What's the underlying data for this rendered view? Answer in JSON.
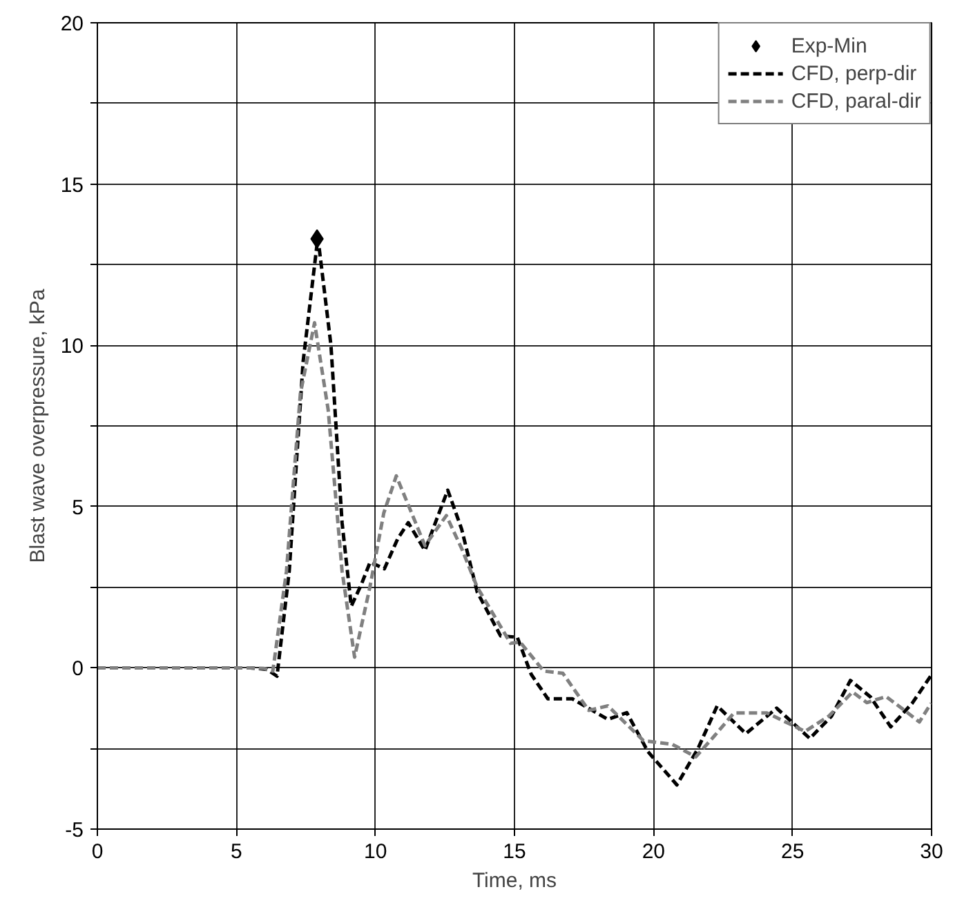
{
  "chart_data": {
    "type": "line",
    "xlabel": "Time, ms",
    "ylabel": "Blast wave overpressure, kPa",
    "xlim": [
      0,
      30
    ],
    "ylim": [
      -5,
      20
    ],
    "xticks": [
      0,
      5,
      10,
      15,
      20,
      25,
      30
    ],
    "yticks": [
      -5,
      {
        "value": -2.5,
        "label": null
      },
      0,
      {
        "value": 2.5,
        "label": null
      },
      5,
      {
        "value": 7.5,
        "label": null
      },
      10,
      {
        "value": 12.5,
        "label": null
      },
      15,
      {
        "value": 17.5,
        "label": null
      },
      20
    ],
    "grid": true,
    "legend": "top right",
    "line_style": "dashed",
    "series": [
      {
        "name": "Exp-Min",
        "type": "scatter",
        "marker": "diamond",
        "color": "#000000",
        "x": [
          7.9
        ],
        "values": [
          13.3
        ]
      },
      {
        "name": "CFD, perp-dir",
        "color": "#000000",
        "x": [
          0,
          3,
          5.5,
          6.1,
          6.46,
          6.9,
          7.4,
          7.93,
          8.4,
          8.8,
          9.13,
          9.5,
          9.81,
          10.32,
          10.8,
          11.18,
          11.78,
          12.2,
          12.6,
          13.1,
          13.66,
          14.5,
          15.1,
          15.6,
          16.2,
          17.08,
          18.36,
          19.04,
          19.8,
          20.84,
          21.6,
          22.29,
          23.32,
          24.43,
          25.62,
          26.4,
          27.08,
          27.8,
          28.53,
          29.3,
          29.98
        ],
        "values": [
          0,
          0,
          0,
          -0.05,
          -0.26,
          3,
          9.5,
          13.35,
          10,
          4.5,
          1.91,
          2.6,
          3.28,
          3.07,
          4,
          4.5,
          3.64,
          4.6,
          5.51,
          4.3,
          2.35,
          0.99,
          0.95,
          -0.2,
          -0.96,
          -0.96,
          -1.6,
          -1.39,
          -2.6,
          -3.63,
          -2.5,
          -1.18,
          -2.04,
          -1.25,
          -2.19,
          -1.5,
          -0.39,
          -0.9,
          -1.83,
          -1.1,
          -0.24
        ]
      },
      {
        "name": "CFD, paral-dir",
        "color": "#808080",
        "x": [
          0,
          3,
          5.5,
          6.0,
          6.31,
          6.8,
          7.3,
          7.81,
          8.3,
          8.8,
          9.25,
          9.8,
          10.3,
          10.75,
          11.3,
          11.78,
          12.55,
          13.1,
          13.66,
          14.86,
          15.2,
          16.05,
          16.74,
          17.67,
          18.36,
          19.64,
          20.67,
          21.52,
          22.2,
          22.89,
          24.08,
          25.45,
          26.3,
          27.16,
          27.67,
          28.36,
          29.0,
          29.56,
          29.98
        ],
        "values": [
          0,
          0,
          0,
          -0.02,
          -0.1,
          3,
          8.5,
          10.7,
          8,
          3,
          0.33,
          2.5,
          4.8,
          5.95,
          4.8,
          3.79,
          4.72,
          3.7,
          2.5,
          0.76,
          0.8,
          -0.1,
          -0.17,
          -1.32,
          -1.18,
          -2.26,
          -2.37,
          -2.76,
          -2.1,
          -1.4,
          -1.4,
          -1.97,
          -1.5,
          -0.75,
          -1.08,
          -0.89,
          -1.3,
          -1.68,
          -1.1
        ]
      }
    ]
  }
}
